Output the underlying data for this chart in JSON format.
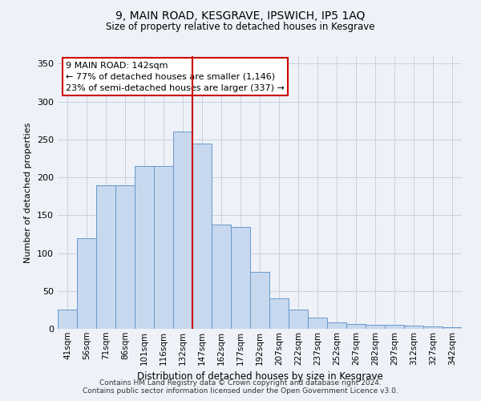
{
  "title": "9, MAIN ROAD, KESGRAVE, IPSWICH, IP5 1AQ",
  "subtitle": "Size of property relative to detached houses in Kesgrave",
  "xlabel": "Distribution of detached houses by size in Kesgrave",
  "ylabel": "Number of detached properties",
  "categories": [
    "41sqm",
    "56sqm",
    "71sqm",
    "86sqm",
    "101sqm",
    "116sqm",
    "132sqm",
    "147sqm",
    "162sqm",
    "177sqm",
    "192sqm",
    "207sqm",
    "222sqm",
    "237sqm",
    "252sqm",
    "267sqm",
    "282sqm",
    "297sqm",
    "312sqm",
    "327sqm",
    "342sqm"
  ],
  "values": [
    25,
    120,
    190,
    190,
    215,
    215,
    260,
    245,
    138,
    135,
    75,
    40,
    25,
    15,
    8,
    6,
    5,
    5,
    4,
    3,
    2
  ],
  "bar_color": "#c8d8ee",
  "bar_edge_color": "#6699cc",
  "vline_x_index": 7,
  "annotation_line1": "9 MAIN ROAD: 142sqm",
  "annotation_line2": "← 77% of detached houses are smaller (1,146)",
  "annotation_line3": "23% of semi-detached houses are larger (337) →",
  "annotation_box_color": "#ffffff",
  "annotation_box_edge_color": "#cc0000",
  "vline_color": "#cc0000",
  "ylim": [
    0,
    360
  ],
  "yticks": [
    0,
    50,
    100,
    150,
    200,
    250,
    300,
    350
  ],
  "background_color": "#eef2f8",
  "grid_color": "#c8d0dc",
  "footer1": "Contains HM Land Registry data © Crown copyright and database right 2024.",
  "footer2": "Contains public sector information licensed under the Open Government Licence v3.0."
}
